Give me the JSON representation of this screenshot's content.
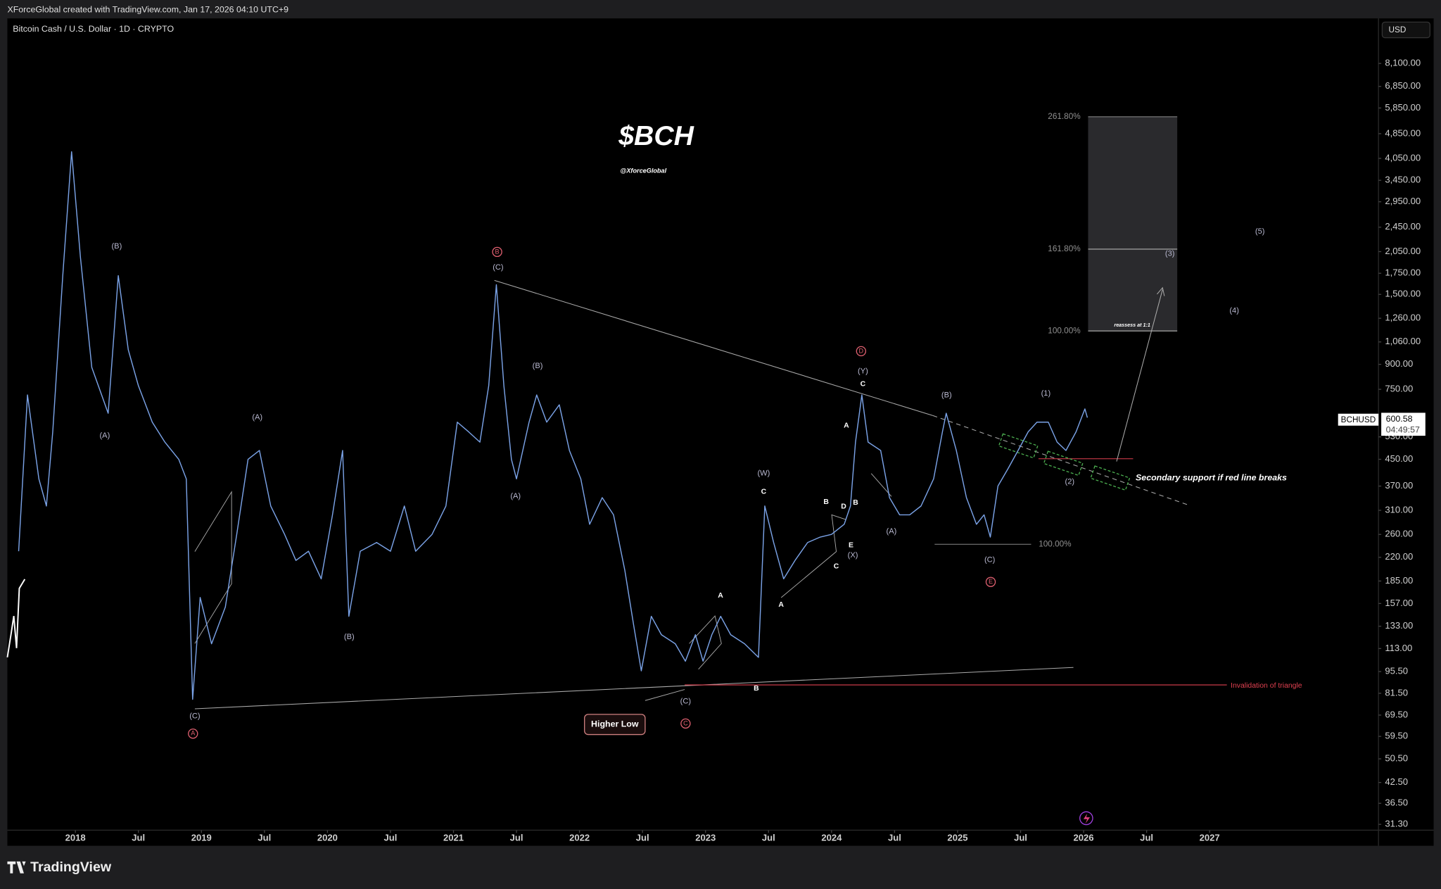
{
  "header": "XForceGlobal created with TradingView.com, Jan 17, 2026 04:10 UTC+9",
  "footer": "TradingView",
  "chart_data": {
    "type": "line",
    "title": "$BCH",
    "subtitle": "@XforceGlobal",
    "symbol_description": "Bitcoin Cash / U.S. Dollar · 1D · CRYPTO",
    "currency": "USD",
    "symbol": "BCHUSD",
    "last_price": 600.58,
    "countdown": "04:49:57",
    "y_scale": "log",
    "grid": false,
    "xlim": [
      2017.46,
      2028.34
    ],
    "ylim": [
      30,
      11254
    ],
    "x": [
      2017.55,
      2017.62,
      2017.71,
      2017.77,
      2017.82,
      2017.9,
      2017.97,
      2018.04,
      2018.13,
      2018.26,
      2018.34,
      2018.42,
      2018.5,
      2018.61,
      2018.71,
      2018.82,
      2018.88,
      2018.93,
      2018.99,
      2019.08,
      2019.19,
      2019.28,
      2019.37,
      2019.46,
      2019.55,
      2019.66,
      2019.75,
      2019.85,
      2019.95,
      2020.04,
      2020.12,
      2020.17,
      2020.26,
      2020.39,
      2020.5,
      2020.61,
      2020.7,
      2020.83,
      2020.94,
      2021.03,
      2021.12,
      2021.21,
      2021.28,
      2021.34,
      2021.4,
      2021.46,
      2021.5,
      2021.6,
      2021.66,
      2021.74,
      2021.84,
      2021.92,
      2022.01,
      2022.08,
      2022.18,
      2022.27,
      2022.36,
      2022.43,
      2022.49,
      2022.57,
      2022.65,
      2022.76,
      2022.84,
      2022.92,
      2022.98,
      2023.05,
      2023.12,
      2023.2,
      2023.31,
      2023.42,
      2023.47,
      2023.54,
      2023.62,
      2023.71,
      2023.81,
      2023.91,
      2024.0,
      2024.1,
      2024.15,
      2024.19,
      2024.24,
      2024.29,
      2024.39,
      2024.46,
      2024.54,
      2024.62,
      2024.71,
      2024.81,
      2024.88,
      2024.91,
      2024.99,
      2025.07,
      2025.15,
      2025.21,
      2025.26,
      2025.32,
      2025.4,
      2025.48,
      2025.56,
      2025.63,
      2025.72,
      2025.79,
      2025.86,
      2025.94,
      2026.01,
      2026.03
    ],
    "series": [
      {
        "name": "BCHUSD",
        "color": "#7aa2e6",
        "values": [
          230,
          720,
          390,
          320,
          550,
          1720,
          4250,
          1970,
          880,
          630,
          1720,
          1000,
          770,
          590,
          510,
          450,
          390,
          78,
          164,
          117,
          153,
          260,
          450,
          480,
          320,
          260,
          215,
          230,
          188,
          300,
          480,
          143,
          230,
          245,
          230,
          320,
          230,
          260,
          320,
          590,
          550,
          510,
          770,
          1610,
          770,
          450,
          390,
          590,
          720,
          590,
          670,
          480,
          390,
          280,
          340,
          300,
          200,
          134,
          96,
          143,
          125,
          117,
          103,
          125,
          103,
          125,
          143,
          125,
          117,
          106,
          320,
          245,
          188,
          215,
          245,
          255,
          260,
          280,
          320,
          510,
          720,
          510,
          480,
          340,
          300,
          300,
          320,
          390,
          550,
          630,
          480,
          340,
          280,
          300,
          255,
          370,
          420,
          480,
          550,
          590,
          590,
          510,
          480,
          550,
          650,
          610
        ]
      }
    ],
    "xticks": [
      2018,
      {
        "value": 2018.5,
        "label": "Jul"
      },
      2019,
      {
        "value": 2019.5,
        "label": "Jul"
      },
      2020,
      {
        "value": 2020.5,
        "label": "Jul"
      },
      2021,
      {
        "value": 2021.5,
        "label": "Jul"
      },
      2022,
      {
        "value": 2022.5,
        "label": "Jul"
      },
      2023,
      {
        "value": 2023.5,
        "label": "Jul"
      },
      2024,
      {
        "value": 2024.5,
        "label": "Jul"
      },
      2025,
      {
        "value": 2025.5,
        "label": "Jul"
      },
      2026,
      {
        "value": 2026.5,
        "label": "Jul"
      },
      2027
    ],
    "yticks": [
      {
        "value": 8100,
        "label": "8,100.00"
      },
      {
        "value": 6850,
        "label": "6,850.00"
      },
      {
        "value": 5850,
        "label": "5,850.00"
      },
      {
        "value": 4850,
        "label": "4,850.00"
      },
      {
        "value": 4050,
        "label": "4,050.00"
      },
      {
        "value": 3450,
        "label": "3,450.00"
      },
      {
        "value": 2950,
        "label": "2,950.00"
      },
      {
        "value": 2450,
        "label": "2,450.00"
      },
      {
        "value": 2050,
        "label": "2,050.00"
      },
      {
        "value": 1750,
        "label": "1,750.00"
      },
      {
        "value": 1500,
        "label": "1,500.00"
      },
      {
        "value": 1260,
        "label": "1,260.00"
      },
      {
        "value": 1060,
        "label": "1,060.00"
      },
      {
        "value": 900,
        "label": "900.00"
      },
      {
        "value": 750,
        "label": "750.00"
      },
      {
        "value": 530,
        "label": "530.00"
      },
      {
        "value": 450,
        "label": "450.00"
      },
      {
        "value": 370,
        "label": "370.00"
      },
      {
        "value": 310,
        "label": "310.00"
      },
      {
        "value": 260,
        "label": "260.00"
      },
      {
        "value": 220,
        "label": "220.00"
      },
      {
        "value": 185,
        "label": "185.00"
      },
      {
        "value": 157,
        "label": "157.00"
      },
      {
        "value": 133,
        "label": "133.00"
      },
      {
        "value": 113,
        "label": "113.00"
      },
      {
        "value": 95.5,
        "label": "95.50"
      },
      {
        "value": 81.5,
        "label": "81.50"
      },
      {
        "value": 69.5,
        "label": "69.50"
      },
      {
        "value": 59.5,
        "label": "59.50"
      },
      {
        "value": 50.5,
        "label": "50.50"
      },
      {
        "value": 42.5,
        "label": "42.50"
      },
      {
        "value": 36.5,
        "label": "36.50"
      },
      {
        "value": 31.3,
        "label": "31.30"
      }
    ],
    "annotations": [
      "(B)",
      "(A)",
      "(A)",
      "(C)",
      "A",
      "(B)",
      "B",
      "(C)",
      "(B)",
      "(A)",
      "A",
      "B",
      "(C)",
      "C",
      "(W)",
      "C",
      "A",
      "B",
      "D",
      "E",
      "C",
      "(X)",
      "A",
      "B",
      "C",
      "(Y)",
      "D",
      "(A)",
      "(B)",
      "(C)",
      "E",
      "100.00%",
      "(1)",
      "(2)",
      "(3)",
      "(4)",
      "(5)",
      "261.80%",
      "161.80%",
      "100.00%",
      "reassess at 1:1",
      "Secondary support if red line breaks",
      "Invalidation of triangle",
      "Higher Low"
    ]
  }
}
